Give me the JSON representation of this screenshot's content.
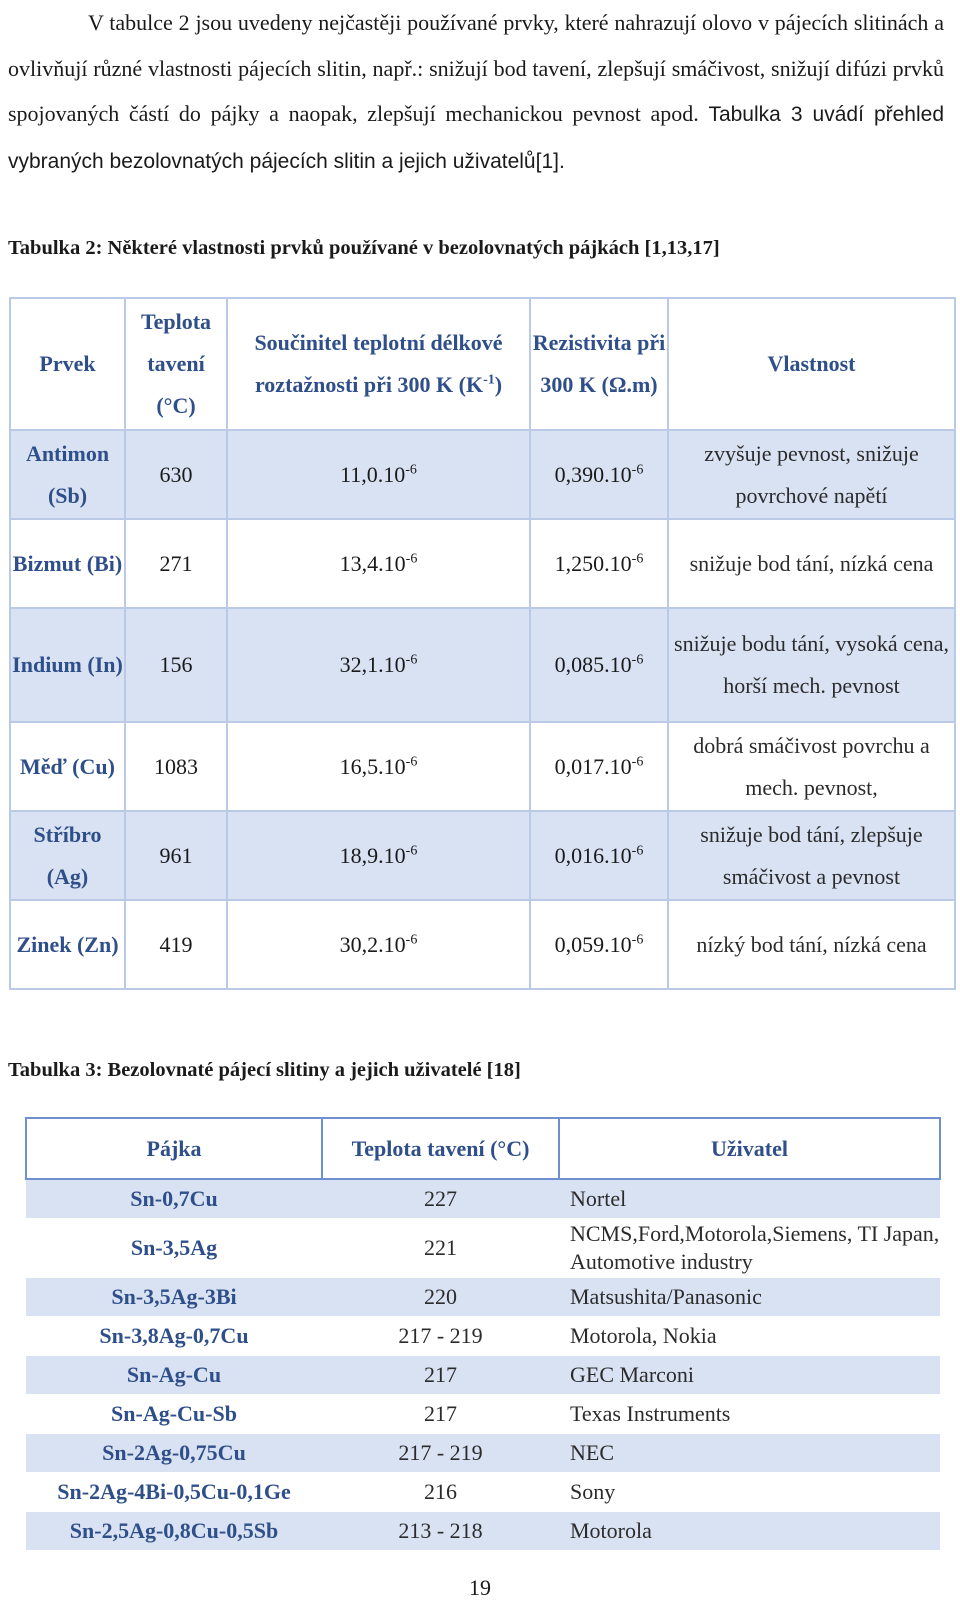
{
  "intro": {
    "text1": "V tabulce 2 jsou uvedeny nejčastěji používané prvky, které nahrazují olovo v pájecích slitinách a ovlivňují různé vlastnosti pájecích slitin, např.: snižují bod tavení, zlepšují smáčivost, snižují difúzi prvků spojovaných částí do pájky a naopak, zlepšují mechanickou pevnost apod. ",
    "text2": "Tabulka 3 uvádí přehled vybraných bezolovnatých pájecích slitin a jejich uživatelů[1]."
  },
  "table2": {
    "caption": "Tabulka 2: Některé vlastnosti prvků používané v bezolovnatých pájkách [1,13,17]",
    "headers": {
      "element": "Prvek",
      "melting": "Teplota tavení (°C)",
      "expansion_prefix": "Součinitel teplotní délkové roztažnosti při 300 K (K",
      "expansion_exp": "-1",
      "expansion_suffix": ")",
      "resistivity": "Rezistivita při 300 K (Ω.m)",
      "property": "Vlastnost"
    },
    "exp_suffix": "-6",
    "rows": [
      {
        "element": "Antimon (Sb)",
        "melting": "630",
        "expansion": "11,0.10",
        "resistivity": "0,390.10",
        "property": "zvyšuje pevnost, snižuje povrchové napětí"
      },
      {
        "element": "Bizmut (Bi)",
        "melting": "271",
        "expansion": "13,4.10",
        "resistivity": "1,250.10",
        "property": "snižuje bod tání, nízká cena"
      },
      {
        "element": "Indium (In)",
        "melting": "156",
        "expansion": "32,1.10",
        "resistivity": "0,085.10",
        "property": "snižuje bodu tání, vysoká cena, horší mech. pevnost"
      },
      {
        "element": "Měď (Cu)",
        "melting": "1083",
        "expansion": "16,5.10",
        "resistivity": "0,017.10",
        "property": "dobrá smáčivost povrchu a mech. pevnost,"
      },
      {
        "element": "Stříbro (Ag)",
        "melting": "961",
        "expansion": "18,9.10",
        "resistivity": "0,016.10",
        "property": "snižuje bod tání, zlepšuje smáčivost a pevnost"
      },
      {
        "element": "Zinek (Zn)",
        "melting": "419",
        "expansion": "30,2.10",
        "resistivity": "0,059.10",
        "property": "nízký bod tání, nízká cena"
      }
    ]
  },
  "table3": {
    "caption": "Tabulka 3: Bezolovnaté pájecí slitiny a jejich uživatelé [18]",
    "headers": {
      "alloy": "Pájka",
      "melting": "Teplota tavení (°C)",
      "user": "Uživatel"
    },
    "rows": [
      {
        "alloy": "Sn-0,7Cu",
        "melting": "227",
        "user": "Nortel"
      },
      {
        "alloy": "Sn-3,5Ag",
        "melting": "221",
        "user": "NCMS,Ford,Motorola,Siemens, TI Japan, Automotive industry"
      },
      {
        "alloy": "Sn-3,5Ag-3Bi",
        "melting": "220",
        "user": "Matsushita/Panasonic"
      },
      {
        "alloy": "Sn-3,8Ag-0,7Cu",
        "melting": "217 - 219",
        "user": "Motorola, Nokia"
      },
      {
        "alloy": "Sn-Ag-Cu",
        "melting": "217",
        "user": "GEC Marconi"
      },
      {
        "alloy": "Sn-Ag-Cu-Sb",
        "melting": "217",
        "user": "Texas Instruments"
      },
      {
        "alloy": "Sn-2Ag-0,75Cu",
        "melting": "217 - 219",
        "user": "NEC"
      },
      {
        "alloy": "Sn-2Ag-4Bi-0,5Cu-0,1Ge",
        "melting": "216",
        "user": "Sony"
      },
      {
        "alloy": "Sn-2,5Ag-0,8Cu-0,5Sb",
        "melting": "213 - 218",
        "user": "Motorola"
      }
    ]
  },
  "page_number": "19"
}
